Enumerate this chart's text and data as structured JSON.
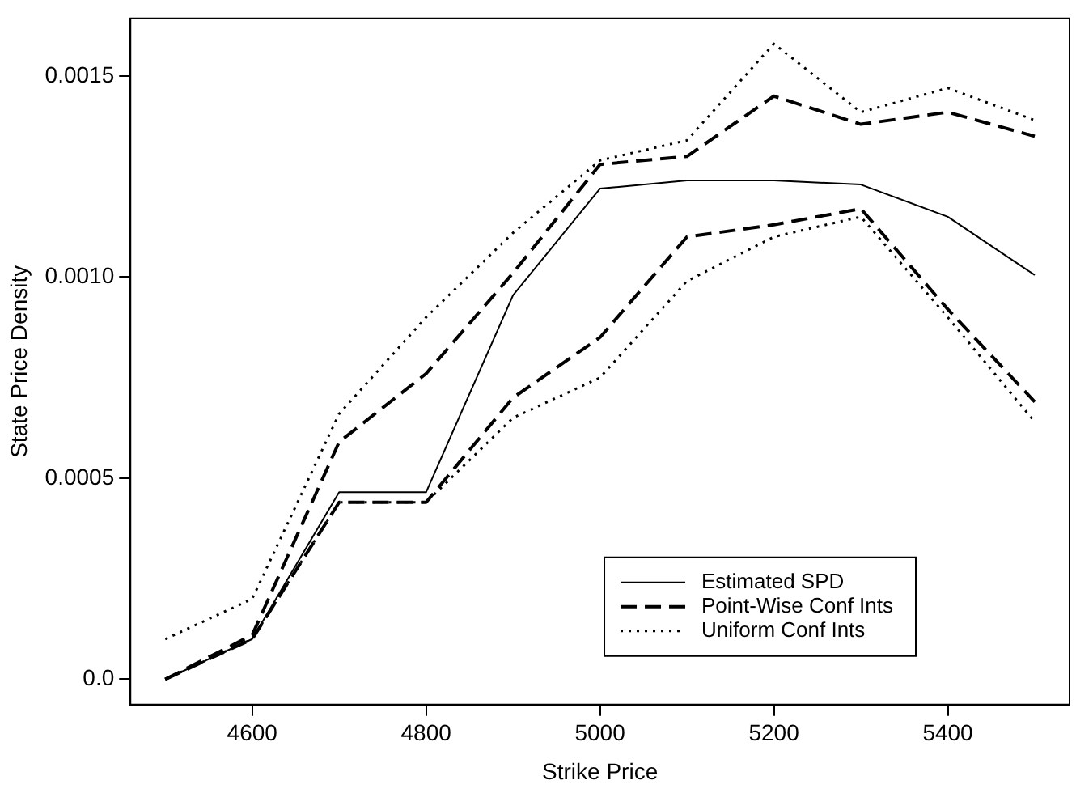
{
  "chart_data": {
    "type": "line",
    "xlabel": "Strike Price",
    "ylabel": "State Price Density",
    "x": [
      4500,
      4600,
      4700,
      4800,
      4900,
      5000,
      5100,
      5200,
      5300,
      5400,
      5500
    ],
    "xlim": [
      4460,
      5540
    ],
    "xticks": [
      4600,
      4800,
      5000,
      5200,
      5400
    ],
    "ylim": [
      -6.3e-05,
      0.001643
    ],
    "yticks": [
      {
        "value": 0,
        "label": "0.0"
      },
      {
        "value": 0.0005,
        "label": "0.0005"
      },
      {
        "value": 0.001,
        "label": "0.0010"
      },
      {
        "value": 0.0015,
        "label": "0.0015"
      }
    ],
    "grid": false,
    "legend": "bottom right",
    "marker": "none",
    "series": [
      {
        "name": "Estimated SPD",
        "color": "#000000",
        "line_style": "solid",
        "values": [
          0.0,
          0.0001,
          0.000465,
          0.000465,
          0.000955,
          0.00122,
          0.00124,
          0.00124,
          0.00123,
          0.00115,
          0.001005
        ]
      },
      {
        "name": "Point-Wise Conf Ints",
        "color": "#000000",
        "line_style": "dashed",
        "values": [
          0.0,
          0.00011,
          0.00059,
          0.00076,
          0.00101,
          0.00128,
          0.0013,
          0.00145,
          0.00138,
          0.00141,
          0.00135
        ]
      },
      {
        "color": "#000000",
        "line_style": "dashed",
        "values": [
          0.0,
          0.0001,
          0.00044,
          0.00044,
          0.0007,
          0.00085,
          0.0011,
          0.00113,
          0.00117,
          0.00092,
          0.00069
        ]
      },
      {
        "name": "Uniform Conf Ints",
        "color": "#000000",
        "line_style": "dotted",
        "values": [
          0.0001,
          0.0002,
          0.00066,
          0.0009,
          0.00111,
          0.00129,
          0.00134,
          0.00158,
          0.00141,
          0.00147,
          0.00139
        ]
      },
      {
        "color": "#000000",
        "line_style": "dotted",
        "values": [
          0.0,
          0.0001,
          0.00044,
          0.00044,
          0.00065,
          0.00075,
          0.00099,
          0.0011,
          0.00115,
          0.0009,
          0.00064
        ]
      }
    ]
  }
}
